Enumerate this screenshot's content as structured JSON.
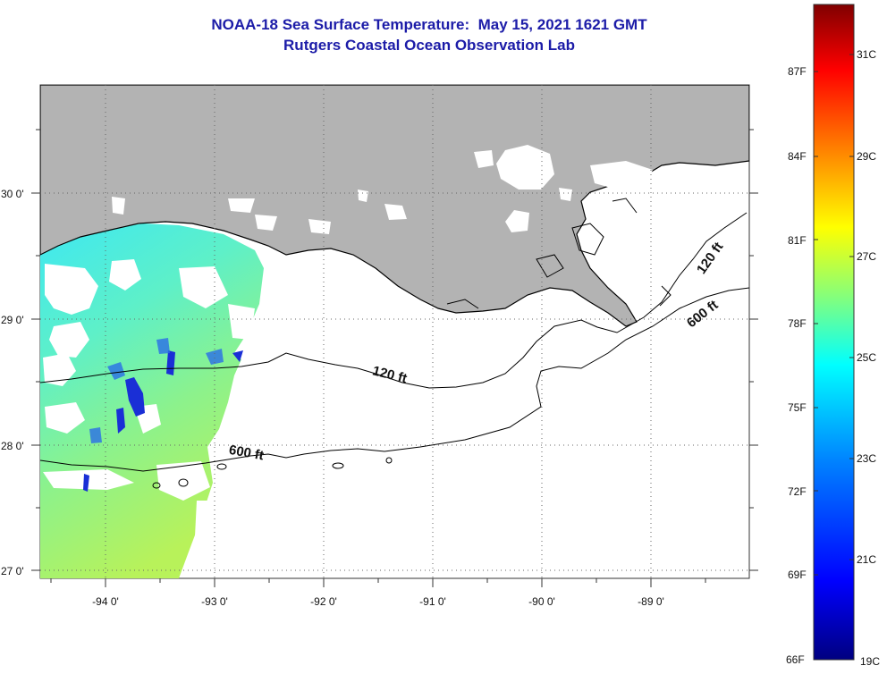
{
  "title": {
    "line1": "NOAA-18 Sea Surface Temperature:  May 15, 2021 1621 GMT",
    "line2": "Rutgers Coastal Ocean Observation Lab"
  },
  "map": {
    "longitude_labels": [
      "-94 0'",
      "-93 0'",
      "-92 0'",
      "-91 0'",
      "-90 0'",
      "-89 0'"
    ],
    "latitude_labels": [
      "30 0'",
      "29 0'",
      "28 0'",
      "27 0'"
    ],
    "contour_labels": [
      "120 ft",
      "120 ft",
      "600 ft",
      "600 ft"
    ],
    "colors": {
      "land": "#b3b3b3",
      "no_data": "#ffffff",
      "grid": "#777777"
    }
  },
  "colorbar": {
    "fahrenheit_labels": [
      "87F",
      "84F",
      "81F",
      "78F",
      "75F",
      "72F",
      "69F",
      "66F"
    ],
    "celsius_labels": [
      "31C",
      "29C",
      "27C",
      "25C",
      "23C",
      "21C",
      "19C"
    ],
    "colors": [
      "#000080",
      "#0000ff",
      "#0080ff",
      "#00ffff",
      "#80ff80",
      "#ffff00",
      "#ff8000",
      "#ff0000",
      "#800000"
    ]
  }
}
